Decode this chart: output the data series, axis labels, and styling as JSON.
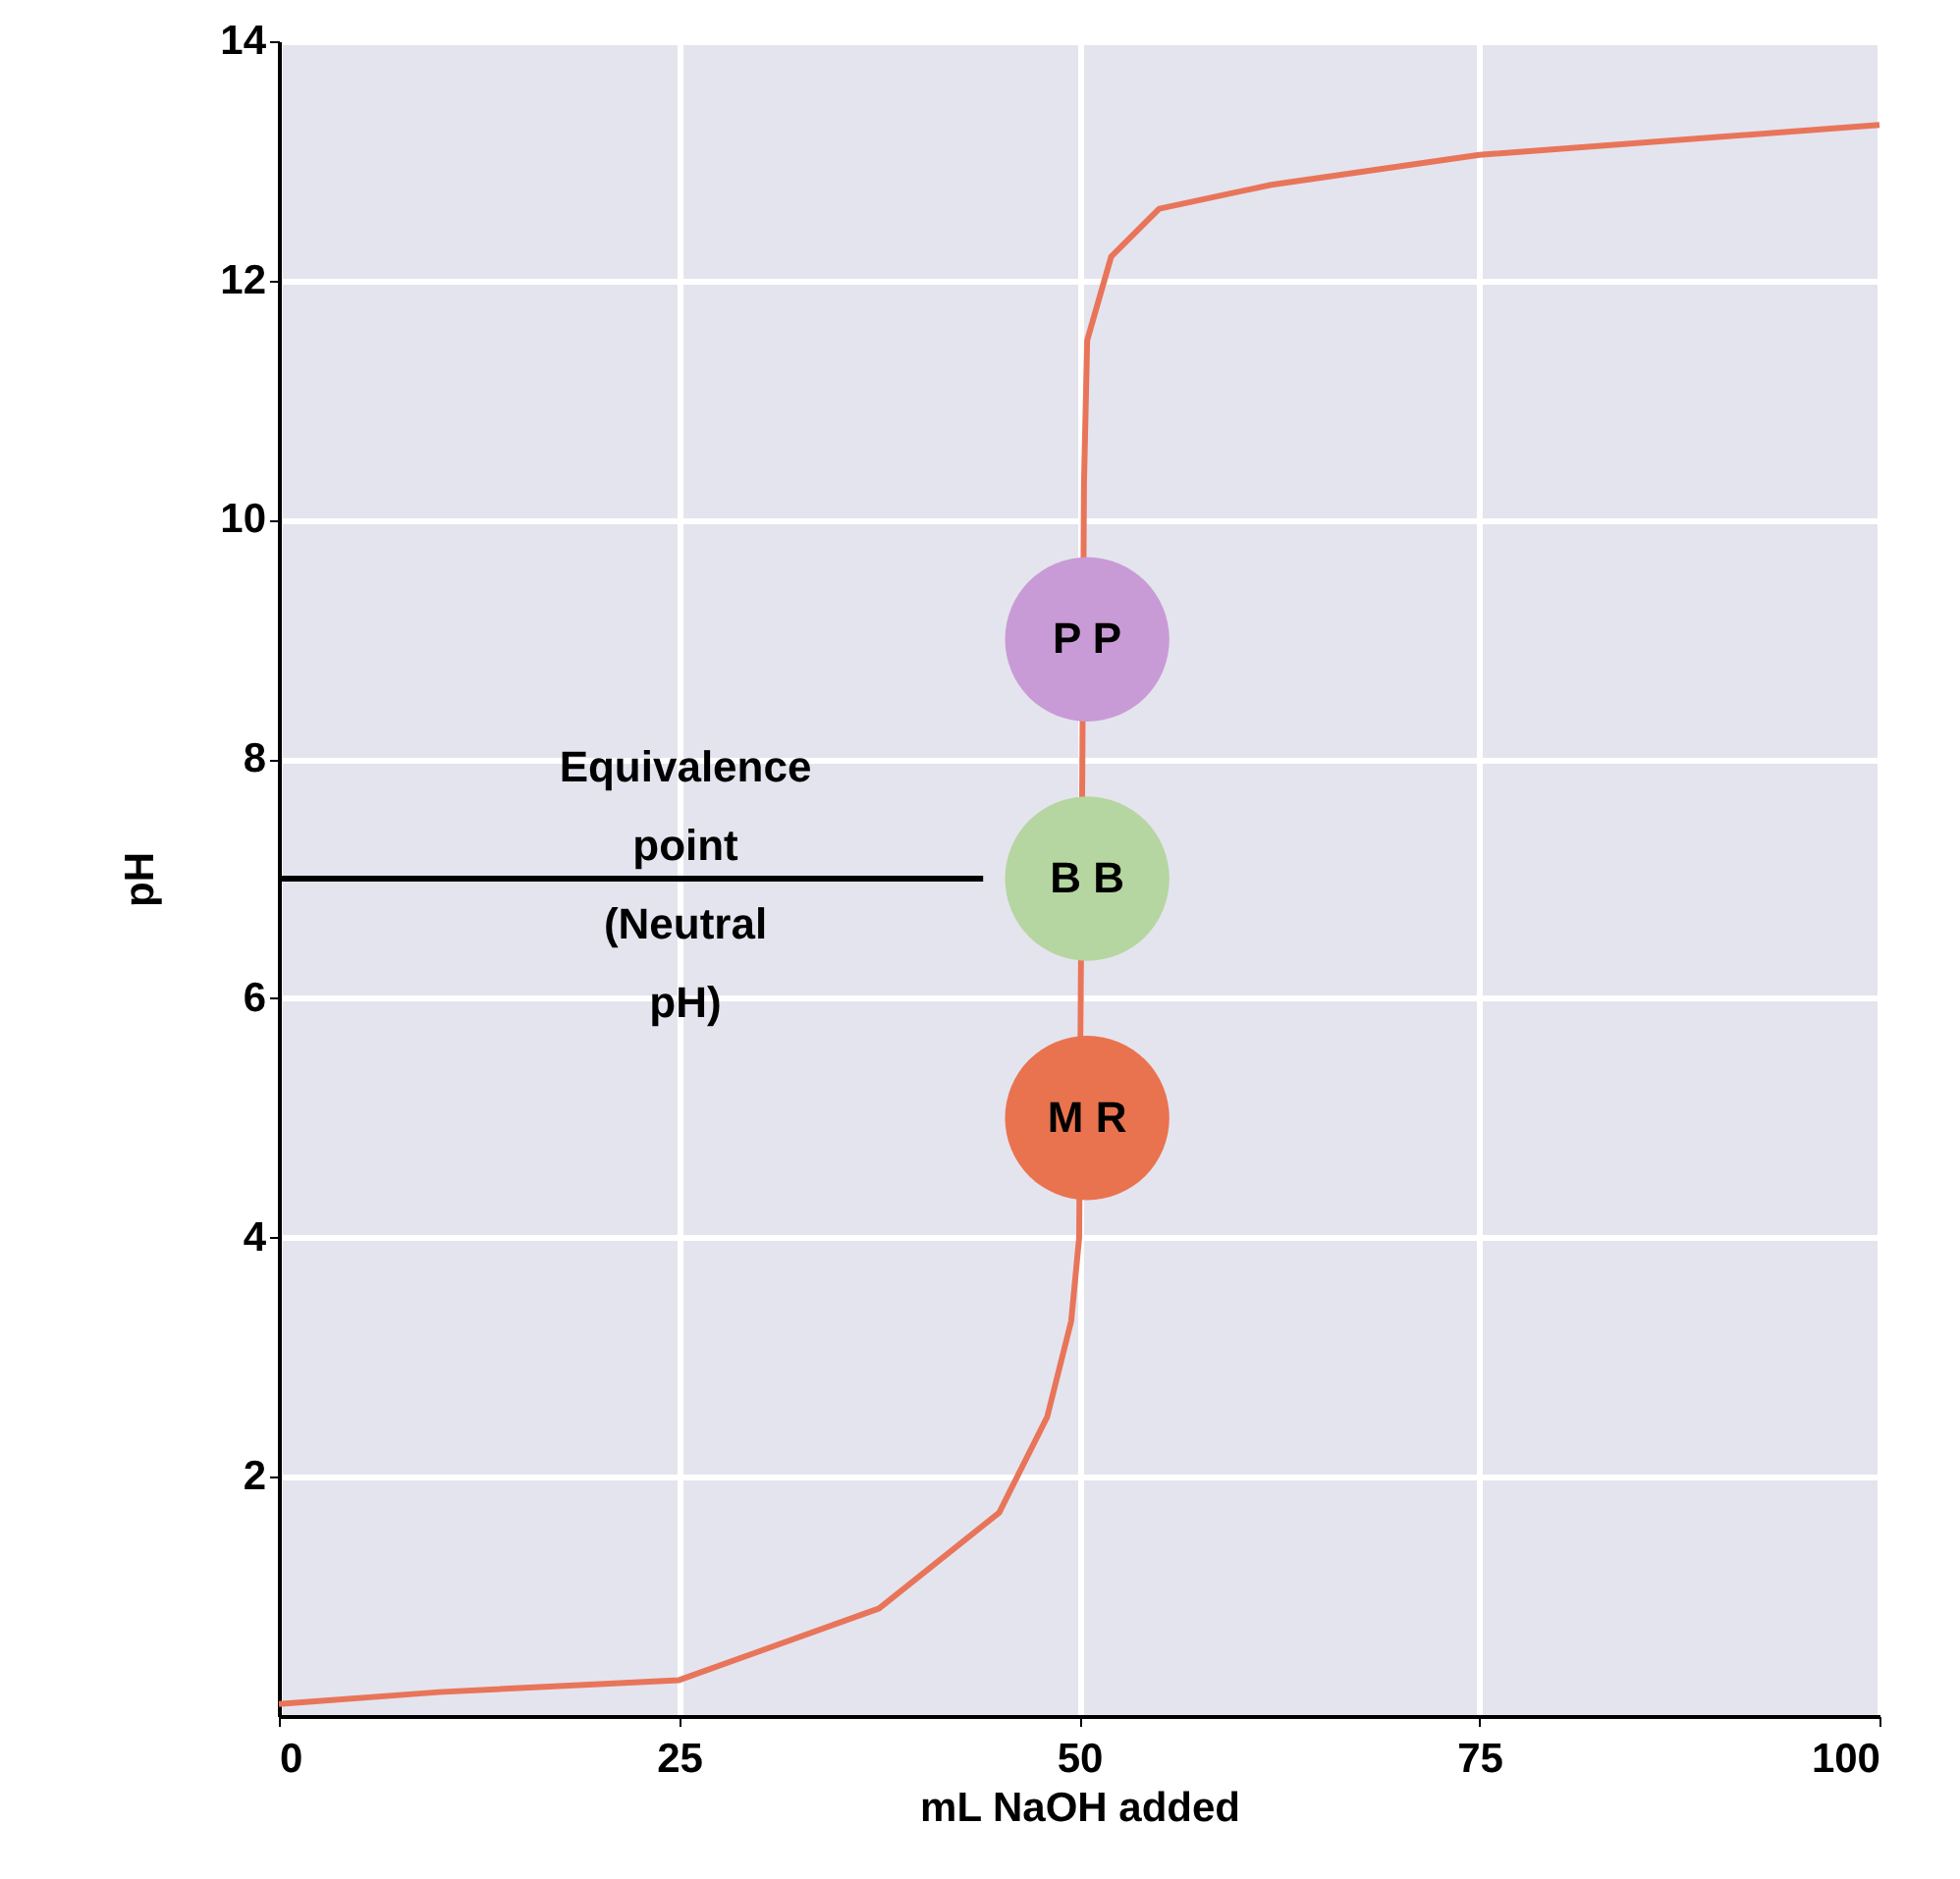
{
  "chart_data": {
    "type": "line",
    "xlabel": "mL NaOH added",
    "ylabel": "pH",
    "xlim": [
      0,
      100
    ],
    "ylim": [
      0,
      14
    ],
    "xticks": [
      0,
      25,
      50,
      75,
      100
    ],
    "yticks": [
      2,
      4,
      6,
      8,
      10,
      12,
      14
    ],
    "grid": true,
    "series": [
      {
        "color": "#e8755a",
        "x": [
          0,
          10,
          25,
          37.5,
          45,
          48,
          49.5,
          50,
          50.1,
          50.2,
          50.3,
          50.5,
          52,
          55,
          62,
          75,
          100
        ],
        "values": [
          0.1,
          0.2,
          0.3,
          0.9,
          1.7,
          2.5,
          3.3,
          4,
          6,
          8,
          10.3,
          11.5,
          12.2,
          12.6,
          12.8,
          13.05,
          13.3
        ]
      },
      {
        "type": "line",
        "color": "#000000",
        "x": [
          0,
          44
        ],
        "values": [
          7,
          7
        ]
      },
      {
        "type": "scatter",
        "marker": "circle",
        "x": [
          50.5,
          50.5,
          50.5
        ],
        "values": [
          9,
          7,
          5
        ],
        "colors": [
          "#c99bd6",
          "#b5d6a0",
          "#e9734f"
        ],
        "value_labels": [
          "P P",
          "B B",
          "M R"
        ]
      }
    ],
    "annotations": [
      "Equivalence\npoint\n(Neutral\npH)"
    ]
  }
}
